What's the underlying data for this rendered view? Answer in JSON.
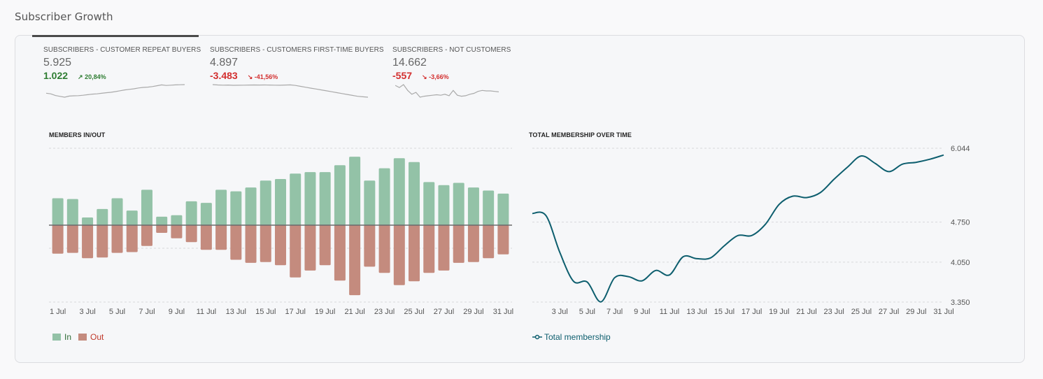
{
  "section": {
    "title": "Subscriber Growth"
  },
  "kpis": [
    {
      "title": "SUBSCRIBERS - CUSTOMER REPEAT BUYERS",
      "value": "5.925",
      "delta": "1.022",
      "pct": "20,84%",
      "trend": "up",
      "trend_icon": "arrow-up-right-icon",
      "active": true,
      "spark": [
        4903,
        4880,
        4820,
        4790,
        4760,
        4800,
        4810,
        4815,
        4830,
        4850,
        4870,
        4880,
        4900,
        4920,
        4935,
        4960,
        4990,
        5020,
        5040,
        5060,
        5090,
        5110,
        5120,
        5140,
        5170,
        5200,
        5180,
        5190,
        5200,
        5205,
        5210
      ]
    },
    {
      "title": "SUBSCRIBERS - CUSTOMERS FIRST-TIME BUYERS",
      "value": "4.897",
      "delta": "-3.483",
      "pct": "-41,56%",
      "trend": "down",
      "trend_icon": "arrow-down-right-icon",
      "active": false,
      "spark": [
        8380,
        8300,
        8250,
        8280,
        8220,
        8240,
        8260,
        8280,
        8300,
        8290,
        8310,
        8280,
        8260,
        8240,
        8280,
        8320,
        8200,
        8000,
        7800,
        7600,
        7400,
        7200,
        7000,
        6800,
        6600,
        6400,
        6200,
        6000,
        5800,
        5700,
        5600
      ]
    },
    {
      "title": "SUBSCRIBERS - NOT CUSTOMERS",
      "value": "14.662",
      "delta": "-557",
      "pct": "-3,66%",
      "trend": "down",
      "trend_icon": "arrow-down-right-icon",
      "active": false,
      "spark": [
        15219,
        15000,
        15300,
        14700,
        14300,
        14500,
        14000,
        14100,
        14150,
        14200,
        14250,
        14200,
        14300,
        14150,
        14700,
        14200,
        14100,
        14150,
        14300,
        14400,
        14600,
        14700,
        14650,
        14650,
        14600,
        14550
      ]
    }
  ],
  "colors": {
    "in": "#93c2a7",
    "out": "#c48b7e",
    "line": "#0d5e6e",
    "positive": "#2e7d32",
    "negative": "#d32f2f",
    "legend_in_text": "#2e6b35",
    "legend_out_text": "#c0392b"
  },
  "chart_data": [
    {
      "type": "bar",
      "title": "MEMBERS IN/OUT",
      "xlabel": "",
      "ylabel": "",
      "categories": [
        "1 Jul",
        "2 Jul",
        "3 Jul",
        "4 Jul",
        "5 Jul",
        "6 Jul",
        "7 Jul",
        "8 Jul",
        "9 Jul",
        "10 Jul",
        "11 Jul",
        "12 Jul",
        "13 Jul",
        "14 Jul",
        "15 Jul",
        "16 Jul",
        "17 Jul",
        "18 Jul",
        "19 Jul",
        "20 Jul",
        "21 Jul",
        "22 Jul",
        "23 Jul",
        "24 Jul",
        "25 Jul",
        "26 Jul",
        "27 Jul",
        "28 Jul",
        "29 Jul",
        "30 Jul",
        "31 Jul"
      ],
      "tick_labels": [
        "1 Jul",
        "3 Jul",
        "5 Jul",
        "7 Jul",
        "9 Jul",
        "11 Jul",
        "13 Jul",
        "15 Jul",
        "17 Jul",
        "19 Jul",
        "21 Jul",
        "23 Jul",
        "25 Jul",
        "27 Jul",
        "29 Jul",
        "31 Jul"
      ],
      "series": [
        {
          "name": "In",
          "values": [
            35,
            34,
            10,
            21,
            35,
            19,
            46,
            11,
            13,
            31,
            29,
            46,
            44,
            49,
            58,
            60,
            67,
            69,
            69,
            78,
            89,
            58,
            74,
            87,
            82,
            56,
            52,
            55,
            49,
            45,
            41
          ]
        },
        {
          "name": "Out",
          "values": [
            -37,
            -36,
            -43,
            -42,
            -36,
            -35,
            -27,
            -10,
            -17,
            -22,
            -32,
            -32,
            -45,
            -49,
            -48,
            -52,
            -68,
            -59,
            -52,
            -72,
            -91,
            -54,
            -62,
            -78,
            -73,
            -62,
            -59,
            -49,
            -48,
            -43,
            -38
          ]
        }
      ],
      "ylim": [
        -100,
        100
      ],
      "gridlines": [
        100,
        0,
        -30,
        -100
      ],
      "y_tick_labels_shown": false,
      "grid": true,
      "legend": "bottom-left"
    },
    {
      "type": "line",
      "title": "TOTAL MEMBERSHIP OVER TIME",
      "xlabel": "",
      "ylabel": "",
      "x": [
        "1 Jul",
        "2 Jul",
        "3 Jul",
        "4 Jul",
        "5 Jul",
        "6 Jul",
        "7 Jul",
        "8 Jul",
        "9 Jul",
        "10 Jul",
        "11 Jul",
        "12 Jul",
        "13 Jul",
        "14 Jul",
        "15 Jul",
        "16 Jul",
        "17 Jul",
        "18 Jul",
        "19 Jul",
        "20 Jul",
        "21 Jul",
        "22 Jul",
        "23 Jul",
        "24 Jul",
        "25 Jul",
        "26 Jul",
        "27 Jul",
        "28 Jul",
        "29 Jul",
        "30 Jul",
        "31 Jul"
      ],
      "tick_labels": [
        "3 Jul",
        "5 Jul",
        "7 Jul",
        "9 Jul",
        "11 Jul",
        "13 Jul",
        "15 Jul",
        "17 Jul",
        "19 Jul",
        "21 Jul",
        "23 Jul",
        "25 Jul",
        "27 Jul",
        "29 Jul",
        "31 Jul"
      ],
      "series": [
        {
          "name": "Total membership",
          "values": [
            4903,
            4864,
            4222,
            3715,
            3702,
            3354,
            3776,
            3796,
            3722,
            3903,
            3825,
            4145,
            4111,
            4124,
            4336,
            4516,
            4516,
            4713,
            5061,
            5205,
            5180,
            5266,
            5500,
            5717,
            5909,
            5779,
            5635,
            5766,
            5798,
            5852,
            5925
          ]
        }
      ],
      "y_ticks": [
        {
          "value": 6044,
          "label": "6.044"
        },
        {
          "value": 4750,
          "label": "4.750"
        },
        {
          "value": 4050,
          "label": "4.050"
        },
        {
          "value": 3350,
          "label": "3.350"
        }
      ],
      "ylim": [
        3350,
        6044
      ],
      "grid": true,
      "legend": "bottom-left"
    }
  ],
  "legends": {
    "bar": [
      {
        "label": "In"
      },
      {
        "label": "Out"
      }
    ],
    "line": {
      "label": "Total membership",
      "icon": "line-marker-icon"
    }
  }
}
